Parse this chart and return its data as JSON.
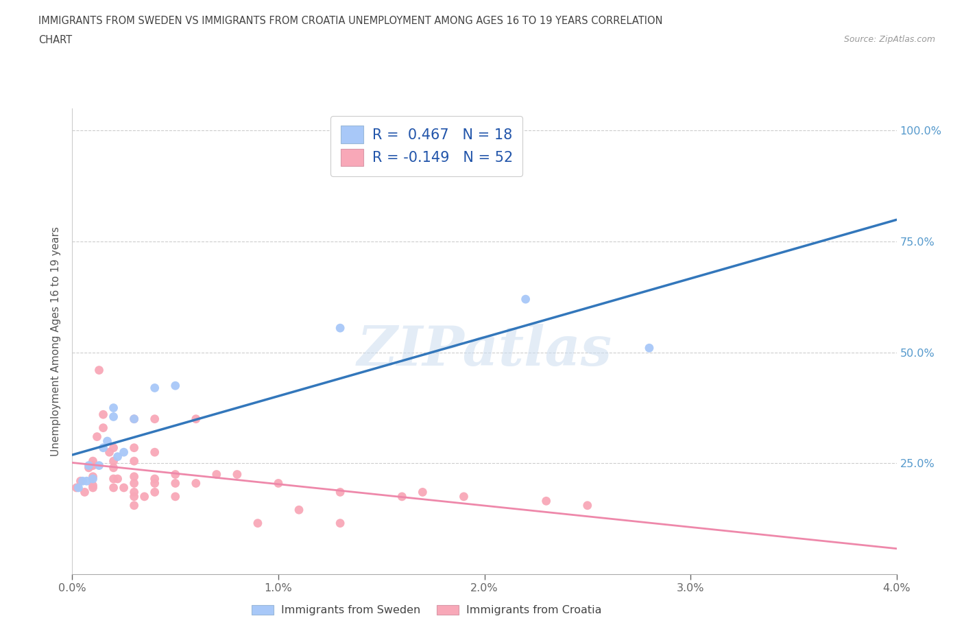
{
  "title_line1": "IMMIGRANTS FROM SWEDEN VS IMMIGRANTS FROM CROATIA UNEMPLOYMENT AMONG AGES 16 TO 19 YEARS CORRELATION",
  "title_line2": "CHART",
  "source": "Source: ZipAtlas.com",
  "ylabel": "Unemployment Among Ages 16 to 19 years",
  "xlim": [
    0.0,
    0.04
  ],
  "ylim": [
    0.0,
    1.05
  ],
  "xtick_labels": [
    "0.0%",
    "1.0%",
    "2.0%",
    "3.0%",
    "4.0%"
  ],
  "xtick_vals": [
    0.0,
    0.01,
    0.02,
    0.03,
    0.04
  ],
  "ytick_labels": [
    "25.0%",
    "50.0%",
    "75.0%",
    "100.0%"
  ],
  "ytick_vals": [
    0.25,
    0.5,
    0.75,
    1.0
  ],
  "sweden_color": "#a8c8f8",
  "croatia_color": "#f8a8b8",
  "sweden_line_color": "#3377bb",
  "croatia_line_color": "#ee88aa",
  "legend_R_sweden": "R =  0.467   N = 18",
  "legend_R_croatia": "R = -0.149   N = 52",
  "watermark": "ZIPatlas",
  "sweden_x": [
    0.0003,
    0.0005,
    0.0007,
    0.0008,
    0.001,
    0.0013,
    0.0015,
    0.0017,
    0.002,
    0.002,
    0.0022,
    0.0025,
    0.003,
    0.004,
    0.005,
    0.013,
    0.022,
    0.028
  ],
  "sweden_y": [
    0.195,
    0.21,
    0.21,
    0.245,
    0.215,
    0.245,
    0.285,
    0.3,
    0.355,
    0.375,
    0.265,
    0.275,
    0.35,
    0.42,
    0.425,
    0.555,
    0.62,
    0.51
  ],
  "croatia_x": [
    0.0002,
    0.0004,
    0.0006,
    0.0008,
    0.001,
    0.001,
    0.001,
    0.001,
    0.001,
    0.0012,
    0.0013,
    0.0015,
    0.0015,
    0.0018,
    0.002,
    0.002,
    0.002,
    0.002,
    0.002,
    0.0022,
    0.0025,
    0.003,
    0.003,
    0.003,
    0.003,
    0.003,
    0.003,
    0.003,
    0.003,
    0.0035,
    0.004,
    0.004,
    0.004,
    0.004,
    0.004,
    0.005,
    0.005,
    0.005,
    0.006,
    0.006,
    0.007,
    0.008,
    0.009,
    0.01,
    0.011,
    0.013,
    0.013,
    0.016,
    0.017,
    0.019,
    0.023,
    0.025
  ],
  "croatia_y": [
    0.195,
    0.21,
    0.185,
    0.24,
    0.195,
    0.2,
    0.22,
    0.245,
    0.255,
    0.31,
    0.46,
    0.33,
    0.36,
    0.275,
    0.195,
    0.215,
    0.24,
    0.255,
    0.285,
    0.215,
    0.195,
    0.155,
    0.175,
    0.185,
    0.205,
    0.22,
    0.255,
    0.285,
    0.35,
    0.175,
    0.185,
    0.205,
    0.275,
    0.35,
    0.215,
    0.175,
    0.205,
    0.225,
    0.205,
    0.35,
    0.225,
    0.225,
    0.115,
    0.205,
    0.145,
    0.185,
    0.115,
    0.175,
    0.185,
    0.175,
    0.165,
    0.155
  ]
}
